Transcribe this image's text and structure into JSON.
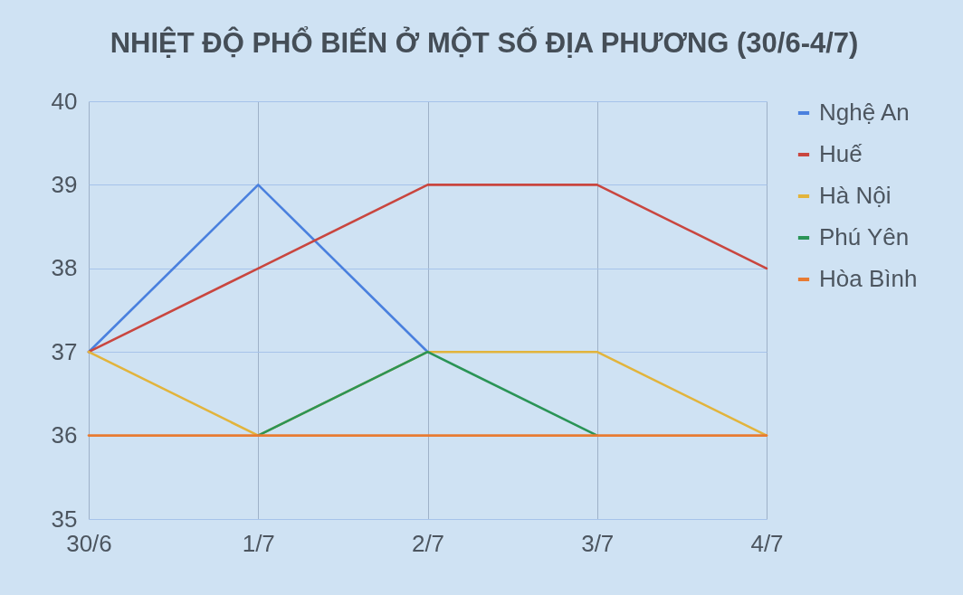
{
  "chart_data": {
    "type": "line",
    "title": "NHIỆT ĐỘ PHỔ BIẾN Ở MỘT SỐ ĐỊA PHƯƠNG (30/6-4/7)",
    "categories": [
      "30/6",
      "1/7",
      "2/7",
      "3/7",
      "4/7"
    ],
    "series": [
      {
        "name": "Nghệ An",
        "color": "#4a80de",
        "values": [
          37,
          39,
          37,
          null,
          null
        ]
      },
      {
        "name": "Huế",
        "color": "#c9463f",
        "values": [
          37,
          38,
          39,
          39,
          38
        ]
      },
      {
        "name": "Hà Nội",
        "color": "#e2b43c",
        "values": [
          37,
          36,
          37,
          37,
          36
        ]
      },
      {
        "name": "Phú Yên",
        "color": "#2a9456",
        "values": [
          null,
          36,
          37,
          36,
          null
        ]
      },
      {
        "name": "Hòa Bình",
        "color": "#e87b32",
        "values": [
          36,
          36,
          36,
          36,
          36
        ]
      }
    ],
    "ylim": [
      35,
      40
    ],
    "yticks": [
      35,
      36,
      37,
      38,
      39,
      40
    ],
    "grid": true,
    "legend": "right",
    "line_style": "solid"
  }
}
